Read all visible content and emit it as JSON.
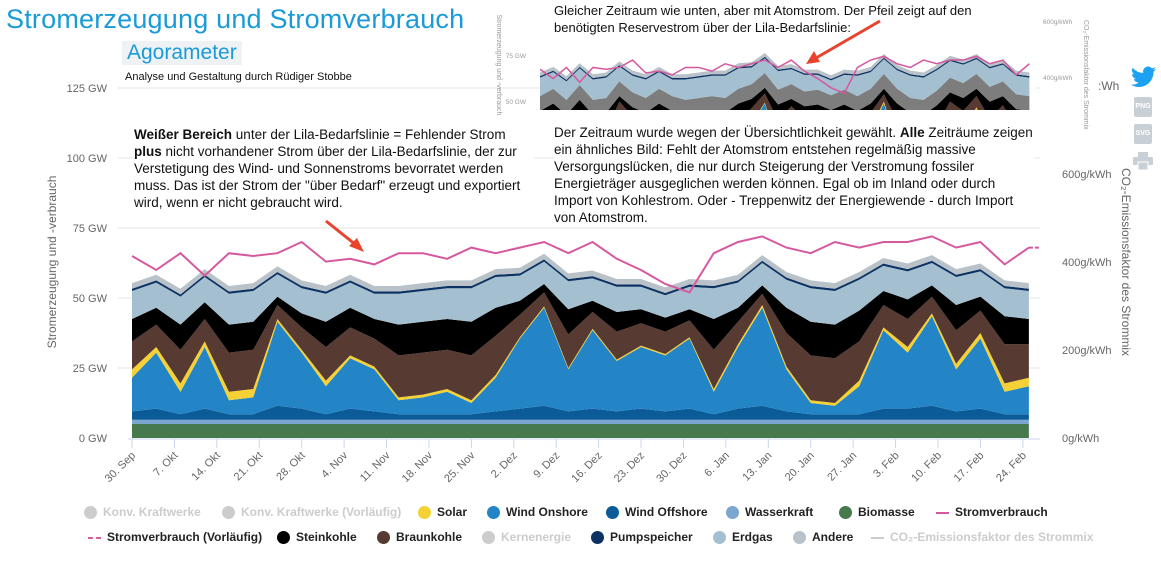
{
  "header": {
    "title": "Stromerzeugung und Stromverbrauch",
    "subtitle": "Agorameter",
    "credit": "Analyse und Gestaltung durch Rüdiger Stobbe"
  },
  "annotations": {
    "note1_bold1": "Weißer Bereich",
    "note1_text1": " unter der Lila-Bedarfslinie = Fehlender Strom ",
    "note1_bold2": "plus",
    "note1_text2": " nicht vorhandener Strom über der Lila-Bedarfslinie, der zur Verstetigung des Wind- und Sonnenstroms bevorratet werden muss. Das ist der Strom der \"über Bedarf\" erzeugt und exportiert wird, wenn er nicht gebraucht wird.",
    "note2_text1": "Der Zeitraum wurde wegen der Übersichtlichkeit gewählt. ",
    "note2_bold": "Alle",
    "note2_text2": " Zeiträume zeigen ein ähnliches Bild: Fehlt der Atomstrom entstehen regelmäßig massive Versorgungslücken, die nur durch Steigerung der Verstromung fossiler Energieträger ausgeglichen werden können. Egal ob im Inland oder durch Import von Kohlestrom. Oder - Treppenwitz der Energiewende - durch Import von Atomstrom.",
    "note3": "Gleicher Zeitraum wie unten, aber mit Atomstrom. Der Pfeil zeigt auf den benötigten Reservestrom über der Lila-Bedarfslinie:"
  },
  "inset": {
    "ylabel": "Stromerzeugung und -verbrauch",
    "yticks": [
      "75 GW",
      "50 GW"
    ],
    "y2ticks": [
      "600g/kWh",
      "400g/kWh"
    ],
    "y2label": "CO₂-Emissionsfaktor des Strommix",
    "nuclear_gw": 8
  },
  "side": {
    "partial_label": ":Wh",
    "png": "PNG",
    "svg": "SVG"
  },
  "colors": {
    "accent": "#1a9bd7",
    "arrow": "#e8432d",
    "disabled": "#cccccc"
  },
  "chart_data": {
    "type": "area",
    "title": "Stromerzeugung und Stromverbrauch",
    "ylabel": "Stromerzeugung und -verbrauch",
    "y2label": "CO₂-Emissionsfaktor des Strommix",
    "ylim": [
      0,
      125
    ],
    "y2lim": [
      0,
      850
    ],
    "yticks": [
      "0 GW",
      "25 GW",
      "50 GW",
      "75 GW",
      "100 GW",
      "125 GW"
    ],
    "y2ticks": [
      "0g/kWh",
      "200g/kWh",
      "400g/kWh",
      "600g/kWh"
    ],
    "xticks": [
      "30. Sep",
      "7. Okt",
      "14. Okt",
      "21. Okt",
      "28. Okt",
      "4. Nov",
      "11. Nov",
      "18. Nov",
      "25. Nov",
      "2. Dez",
      "9. Dez",
      "16. Dez",
      "23. Dez",
      "30. Dez",
      "6. Jan",
      "13. Jan",
      "20. Jan",
      "27. Jan",
      "3. Feb",
      "10. Feb",
      "17. Feb",
      "24. Feb"
    ],
    "x_days_from_30_sep": [
      0,
      4,
      8,
      12,
      16,
      20,
      24,
      28,
      32,
      36,
      40,
      44,
      48,
      52,
      56,
      60,
      64,
      68,
      72,
      76,
      80,
      84,
      88,
      92,
      96,
      100,
      104,
      108,
      112,
      116,
      120,
      124,
      128,
      132,
      136,
      140,
      144,
      148
    ],
    "grid": true,
    "legend_position": "bottom",
    "series": [
      {
        "name": "Biomasse",
        "color": "#467a4c",
        "values": [
          5,
          5,
          5,
          5,
          5,
          5,
          5,
          5,
          5,
          5,
          5,
          5,
          5,
          5,
          5,
          5,
          5,
          5,
          5,
          5,
          5,
          5,
          5,
          5,
          5,
          5,
          5,
          5,
          5,
          5,
          5,
          5,
          5,
          5,
          5,
          5,
          5,
          5
        ]
      },
      {
        "name": "Wasserkraft",
        "color": "#7aa6cf",
        "values": [
          1.5,
          1.5,
          1.5,
          1.5,
          1.5,
          1.5,
          1.5,
          1.5,
          1.5,
          1.5,
          1.5,
          1.5,
          1.5,
          1.5,
          1.5,
          1.5,
          1.5,
          1.5,
          1.5,
          1.5,
          1.5,
          1.5,
          1.5,
          1.5,
          1.5,
          1.5,
          1.5,
          1.5,
          1.5,
          1.5,
          1.5,
          1.5,
          1.5,
          1.5,
          1.5,
          1.5,
          1.5,
          1.5
        ]
      },
      {
        "name": "Wind Offshore",
        "color": "#0b5b98",
        "values": [
          3,
          4,
          2,
          4,
          2,
          2,
          5,
          4,
          2,
          4,
          3,
          2,
          2,
          2,
          2,
          3,
          4,
          5,
          3,
          4,
          3,
          4,
          3,
          4,
          2,
          4,
          5,
          3,
          2,
          2,
          2,
          4,
          4,
          5,
          3,
          4,
          2,
          2
        ]
      },
      {
        "name": "Wind Onshore",
        "color": "#2384c6",
        "values": [
          12,
          20,
          8,
          22,
          5,
          6,
          30,
          20,
          10,
          18,
          15,
          5,
          6,
          8,
          4,
          12,
          25,
          35,
          15,
          28,
          18,
          22,
          20,
          25,
          8,
          22,
          35,
          15,
          4,
          3,
          10,
          28,
          20,
          32,
          15,
          25,
          8,
          10
        ]
      },
      {
        "name": "Solar",
        "color": "#f6d135",
        "values": [
          3,
          2,
          3,
          2,
          3,
          3,
          1,
          1,
          2,
          1,
          1,
          1,
          1,
          1,
          1,
          1,
          0.5,
          0.5,
          0.5,
          0.5,
          0.5,
          0.5,
          0.5,
          0.5,
          1,
          1,
          1,
          1,
          1,
          1,
          2,
          1,
          2,
          1,
          2,
          2,
          3,
          3
        ]
      },
      {
        "name": "Braunkohle",
        "color": "#573a32",
        "values": [
          10,
          8,
          12,
          8,
          14,
          14,
          5,
          8,
          12,
          10,
          10,
          15,
          15,
          14,
          16,
          14,
          8,
          5,
          12,
          6,
          10,
          8,
          8,
          6,
          14,
          8,
          4,
          12,
          16,
          16,
          14,
          8,
          10,
          6,
          12,
          8,
          14,
          12
        ]
      },
      {
        "name": "Steinkohle",
        "color": "#000000",
        "values": [
          8,
          6,
          9,
          6,
          10,
          10,
          3,
          5,
          9,
          7,
          7,
          11,
          11,
          11,
          12,
          10,
          5,
          3,
          9,
          4,
          7,
          5,
          5,
          4,
          11,
          5,
          3,
          9,
          12,
          12,
          11,
          5,
          7,
          4,
          9,
          5,
          10,
          9
        ]
      },
      {
        "name": "Erdgas",
        "color": "#a4bfcf",
        "values": [
          10,
          9,
          10,
          9,
          11,
          11,
          8,
          9,
          10,
          9,
          9,
          11,
          11,
          11,
          12,
          11,
          9,
          8,
          10,
          8,
          9,
          8,
          8,
          8,
          11,
          9,
          8,
          10,
          12,
          12,
          11,
          9,
          10,
          8,
          10,
          9,
          10,
          10
        ]
      },
      {
        "name": "Pumpspeicher",
        "color": "#0c3263",
        "values": [
          0.8,
          0.8,
          0.8,
          0.8,
          0.8,
          0.8,
          0.8,
          0.8,
          0.8,
          0.8,
          0.8,
          0.8,
          0.8,
          0.8,
          0.8,
          0.8,
          0.8,
          0.8,
          0.8,
          0.8,
          0.8,
          0.8,
          0.8,
          0.8,
          0.8,
          0.8,
          0.8,
          0.8,
          0.8,
          0.8,
          0.8,
          0.8,
          0.8,
          0.8,
          0.8,
          0.8,
          0.8,
          0.8
        ]
      },
      {
        "name": "Andere",
        "color": "#b8c2c8",
        "values": [
          2,
          2,
          2,
          2,
          2,
          2,
          2,
          2,
          2,
          2,
          2,
          2,
          2,
          2,
          2,
          2,
          2,
          2,
          2,
          2,
          2,
          2,
          2,
          2,
          2,
          2,
          2,
          2,
          2,
          2,
          2,
          2,
          2,
          2,
          2,
          2,
          2,
          2
        ]
      }
    ],
    "line_series": [
      {
        "name": "Stromverbrauch",
        "color": "#d6589f",
        "values": [
          65,
          60,
          66,
          58,
          66,
          65,
          66,
          70,
          63,
          64,
          62,
          66,
          66,
          64,
          68,
          66,
          68,
          70,
          66,
          70,
          64,
          60,
          55,
          52,
          66,
          70,
          72,
          68,
          66,
          70,
          68,
          70,
          70,
          72,
          68,
          70,
          62,
          68
        ]
      }
    ],
    "legend": [
      {
        "name": "Konv. Kraftwerke",
        "color": "#cccccc",
        "marker": "circle",
        "enabled": false
      },
      {
        "name": "Konv. Kraftwerke (Vorläufig)",
        "color": "#cccccc",
        "marker": "circle",
        "enabled": false
      },
      {
        "name": "Solar",
        "color": "#f6d135",
        "marker": "circle",
        "enabled": true
      },
      {
        "name": "Wind Onshore",
        "color": "#2384c6",
        "marker": "circle",
        "enabled": true
      },
      {
        "name": "Wind Offshore",
        "color": "#0b5b98",
        "marker": "circle",
        "enabled": true
      },
      {
        "name": "Wasserkraft",
        "color": "#7aa6cf",
        "marker": "circle",
        "enabled": true
      },
      {
        "name": "Biomasse",
        "color": "#467a4c",
        "marker": "circle",
        "enabled": true
      },
      {
        "name": "Stromverbrauch",
        "color": "#d6589f",
        "marker": "line",
        "enabled": true
      },
      {
        "name": "Stromverbrauch (Vorläufig)",
        "color": "#d6589f",
        "marker": "dash",
        "enabled": true
      },
      {
        "name": "Steinkohle",
        "color": "#000000",
        "marker": "circle",
        "enabled": true
      },
      {
        "name": "Braunkohle",
        "color": "#573a32",
        "marker": "circle",
        "enabled": true
      },
      {
        "name": "Kernenergie",
        "color": "#cccccc",
        "marker": "circle",
        "enabled": false
      },
      {
        "name": "Pumpspeicher",
        "color": "#0c3263",
        "marker": "circle",
        "enabled": true
      },
      {
        "name": "Erdgas",
        "color": "#a4bfcf",
        "marker": "circle",
        "enabled": true
      },
      {
        "name": "Andere",
        "color": "#b8c2c8",
        "marker": "circle",
        "enabled": true
      },
      {
        "name": "CO₂-Emissionsfaktor des Strommix",
        "color": "#cccccc",
        "marker": "line",
        "enabled": false
      }
    ]
  }
}
